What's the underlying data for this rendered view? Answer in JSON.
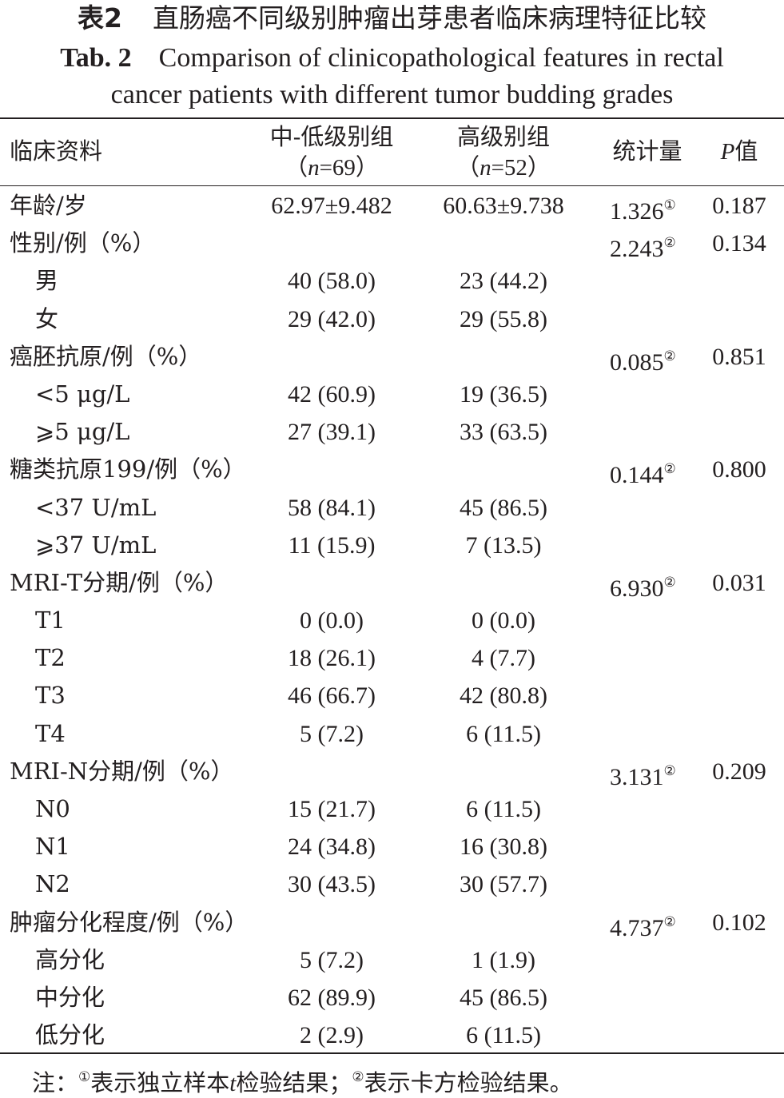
{
  "caption": {
    "cn_label": "表2",
    "cn_title": "直肠癌不同级别肿瘤出芽患者临床病理特征比较",
    "en_label": "Tab. 2",
    "en_title_line1": "Comparison of clinicopathological features in rectal",
    "en_title_line2": "cancer patients with different tumor budding grades"
  },
  "header": {
    "item": "临床资料",
    "group1_name": "中-低级别组",
    "group1_n_open": "（",
    "group1_n_var": "n",
    "group1_n_rest": "=69）",
    "group2_name": "高级别组",
    "group2_n_open": "（",
    "group2_n_var": "n",
    "group2_n_rest": "=52）",
    "stat": "统计量",
    "p_var": "P",
    "p_suffix": "值"
  },
  "rows": [
    {
      "label": "年龄/岁",
      "sub": false,
      "g1": "62.97±9.482",
      "g2": "60.63±9.738",
      "stat": "1.326",
      "mark": "①",
      "p": "0.187"
    },
    {
      "label": "性别/例（%）",
      "sub": false,
      "g1": "",
      "g2": "",
      "stat": "2.243",
      "mark": "②",
      "p": "0.134"
    },
    {
      "label": "男",
      "sub": true,
      "g1": "40 (58.0)",
      "g2": "23 (44.2)",
      "stat": "",
      "mark": "",
      "p": ""
    },
    {
      "label": "女",
      "sub": true,
      "g1": "29 (42.0)",
      "g2": "29 (55.8)",
      "stat": "",
      "mark": "",
      "p": ""
    },
    {
      "label": "癌胚抗原/例（%）",
      "sub": false,
      "g1": "",
      "g2": "",
      "stat": "0.085",
      "mark": "②",
      "p": "0.851"
    },
    {
      "label": "<5 μg/L",
      "sub": true,
      "g1": "42 (60.9)",
      "g2": "19 (36.5)",
      "stat": "",
      "mark": "",
      "p": ""
    },
    {
      "label": "⩾5 μg/L",
      "sub": true,
      "g1": "27 (39.1)",
      "g2": "33 (63.5)",
      "stat": "",
      "mark": "",
      "p": ""
    },
    {
      "label": "糖类抗原199/例（%）",
      "sub": false,
      "g1": "",
      "g2": "",
      "stat": "0.144",
      "mark": "②",
      "p": "0.800"
    },
    {
      "label": "<37 U/mL",
      "sub": true,
      "g1": "58 (84.1)",
      "g2": "45 (86.5)",
      "stat": "",
      "mark": "",
      "p": ""
    },
    {
      "label": "⩾37 U/mL",
      "sub": true,
      "g1": "11 (15.9)",
      "g2": "7 (13.5)",
      "stat": "",
      "mark": "",
      "p": ""
    },
    {
      "label": "MRI-T分期/例（%）",
      "sub": false,
      "g1": "",
      "g2": "",
      "stat": "6.930",
      "mark": "②",
      "p": "0.031"
    },
    {
      "label": "T1",
      "sub": true,
      "g1": "0 (0.0)",
      "g2": "0 (0.0)",
      "stat": "",
      "mark": "",
      "p": ""
    },
    {
      "label": "T2",
      "sub": true,
      "g1": "18 (26.1)",
      "g2": "4 (7.7)",
      "stat": "",
      "mark": "",
      "p": ""
    },
    {
      "label": "T3",
      "sub": true,
      "g1": "46 (66.7)",
      "g2": "42 (80.8)",
      "stat": "",
      "mark": "",
      "p": ""
    },
    {
      "label": "T4",
      "sub": true,
      "g1": "5 (7.2)",
      "g2": "6 (11.5)",
      "stat": "",
      "mark": "",
      "p": ""
    },
    {
      "label": "MRI-N分期/例（%）",
      "sub": false,
      "g1": "",
      "g2": "",
      "stat": "3.131",
      "mark": "②",
      "p": "0.209"
    },
    {
      "label": "N0",
      "sub": true,
      "g1": "15 (21.7)",
      "g2": "6 (11.5)",
      "stat": "",
      "mark": "",
      "p": ""
    },
    {
      "label": "N1",
      "sub": true,
      "g1": "24 (34.8)",
      "g2": "16 (30.8)",
      "stat": "",
      "mark": "",
      "p": ""
    },
    {
      "label": "N2",
      "sub": true,
      "g1": "30 (43.5)",
      "g2": "30 (57.7)",
      "stat": "",
      "mark": "",
      "p": ""
    },
    {
      "label": "肿瘤分化程度/例（%）",
      "sub": false,
      "g1": "",
      "g2": "",
      "stat": "4.737",
      "mark": "②",
      "p": "0.102"
    },
    {
      "label": "高分化",
      "sub": true,
      "g1": "5 (7.2)",
      "g2": "1 (1.9)",
      "stat": "",
      "mark": "",
      "p": ""
    },
    {
      "label": "中分化",
      "sub": true,
      "g1": "62 (89.9)",
      "g2": "45 (86.5)",
      "stat": "",
      "mark": "",
      "p": ""
    },
    {
      "label": "低分化",
      "sub": true,
      "g1": "2 (2.9)",
      "g2": "6 (11.5)",
      "stat": "",
      "mark": "",
      "p": ""
    }
  ],
  "note": {
    "prefix": "注：",
    "mark1": "①",
    "text1a": "表示独立样本",
    "text1_var": "t",
    "text1b": "检验结果；",
    "mark2": "②",
    "text2": "表示卡方检验结果。"
  }
}
